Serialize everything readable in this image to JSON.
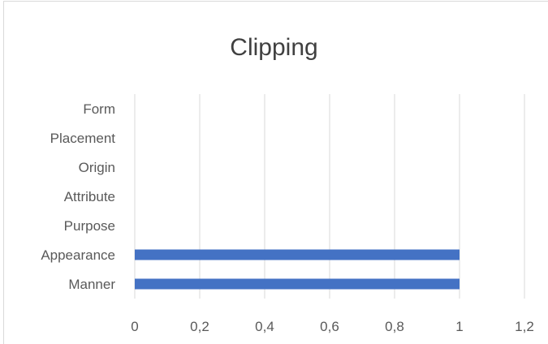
{
  "chart_data": {
    "type": "bar",
    "orientation": "horizontal",
    "title": "Clipping",
    "categories": [
      "Form",
      "Placement",
      "Origin",
      "Attribute",
      "Purpose",
      "Appearance",
      "Manner"
    ],
    "values": [
      0,
      0,
      0,
      0,
      0,
      1,
      1
    ],
    "xlim": [
      0,
      1.2
    ],
    "xticks": [
      "0",
      "0,2",
      "0,4",
      "0,6",
      "0,8",
      "1",
      "1,2"
    ],
    "xtick_values": [
      0,
      0.2,
      0.4,
      0.6,
      0.8,
      1,
      1.2
    ],
    "grid": true,
    "legend": "none",
    "bar_color": "#4472C4",
    "grid_color": "#d9d9d9",
    "text_color": "#595959"
  }
}
